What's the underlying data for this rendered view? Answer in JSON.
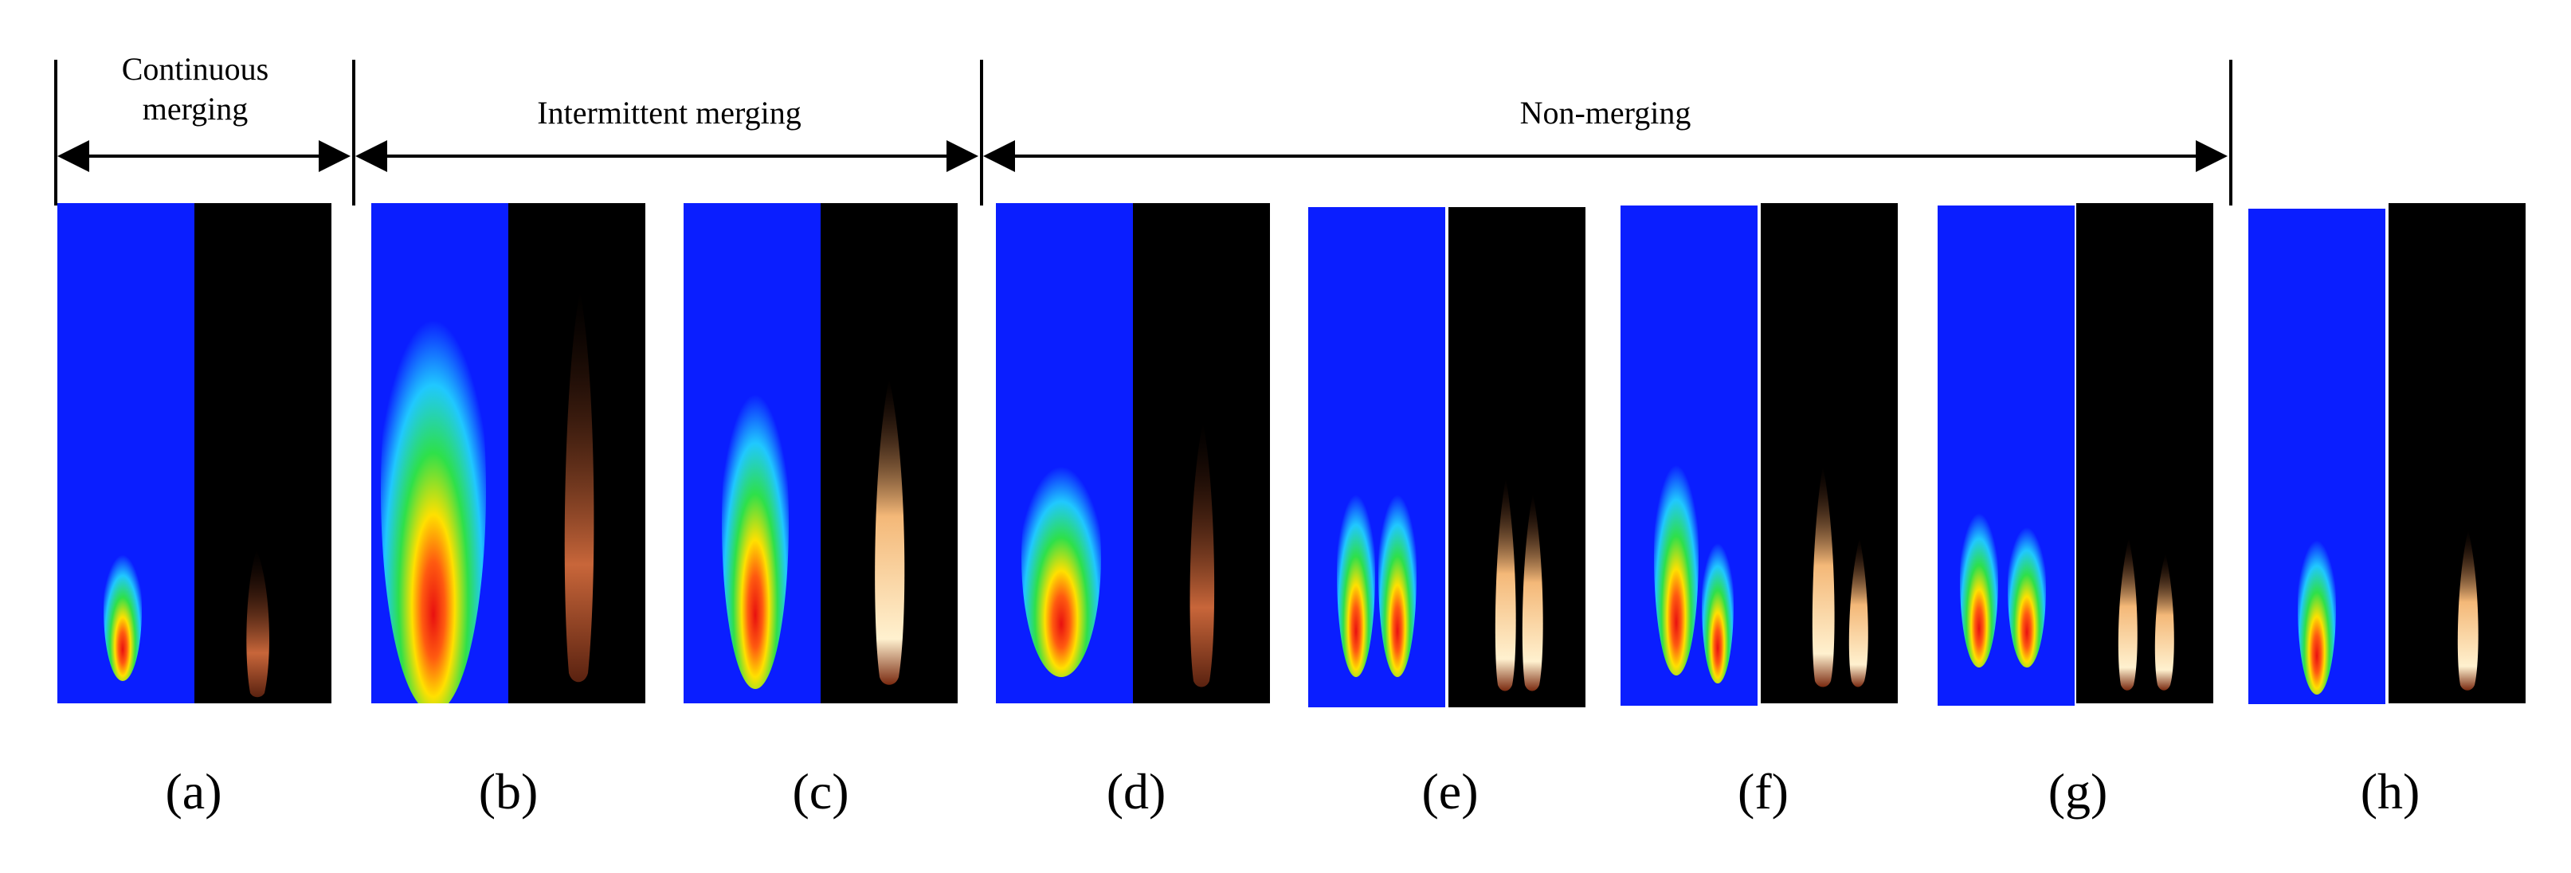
{
  "regimes": [
    {
      "label_lines": [
        "Continuous",
        "merging"
      ]
    },
    {
      "label": "Intermittent merging"
    },
    {
      "label": "Non-merging"
    }
  ],
  "panels": [
    {
      "caption": "(a)",
      "flames": 1
    },
    {
      "caption": "(b)",
      "flames": 1
    },
    {
      "caption": "(c)",
      "flames": 1
    },
    {
      "caption": "(d)",
      "flames": 1
    },
    {
      "caption": "(e)",
      "flames": 2
    },
    {
      "caption": "(f)",
      "flames": 2
    },
    {
      "caption": "(g)",
      "flames": 2
    },
    {
      "caption": "(h)",
      "flames": 1
    }
  ],
  "colors": {
    "contour_background": "#0a1eff",
    "photo_background": "#000000",
    "contour_outer": "#20c8ff",
    "contour_mid": "#2ee04a",
    "contour_inner": "#ffe000",
    "contour_core": "#e81010",
    "flame_glow": "#c8663a",
    "flame_core": "#fff1cf"
  }
}
